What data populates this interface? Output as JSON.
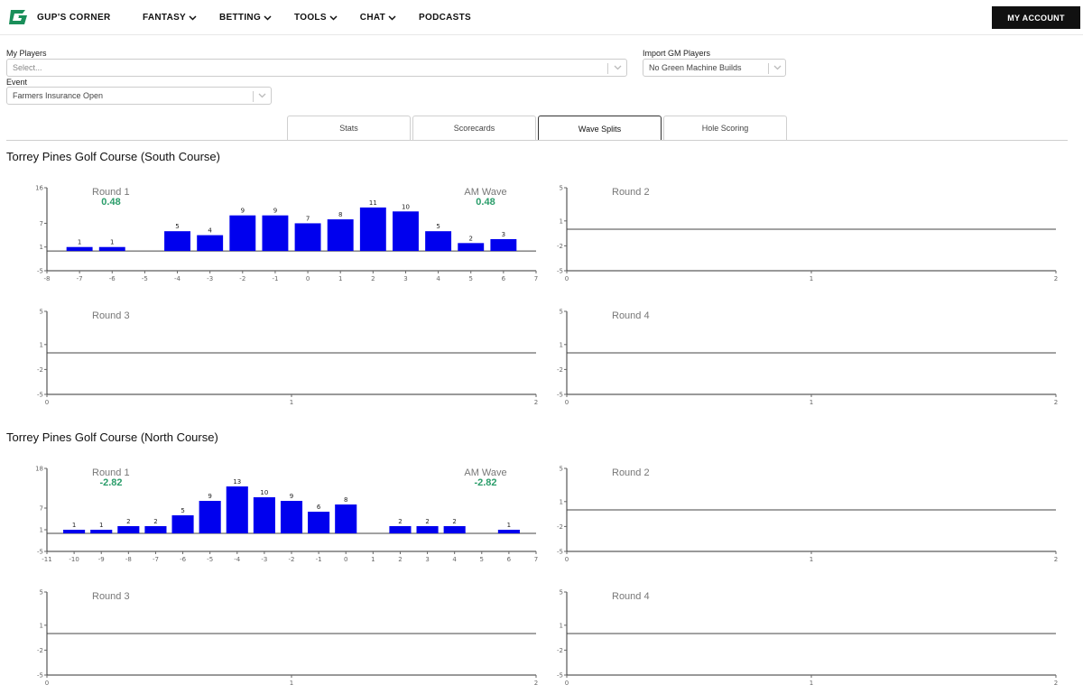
{
  "nav": {
    "brand": "GUP'S CORNER",
    "menu": [
      {
        "label": "FANTASY",
        "dropdown": true
      },
      {
        "label": "BETTING",
        "dropdown": true
      },
      {
        "label": "TOOLS",
        "dropdown": true
      },
      {
        "label": "CHAT",
        "dropdown": true
      },
      {
        "label": "PODCASTS",
        "dropdown": false
      }
    ],
    "account_label": "MY ACCOUNT"
  },
  "filters": {
    "my_players": {
      "label": "My Players",
      "placeholder": "Select..."
    },
    "import_gm": {
      "label": "Import GM Players",
      "value": "No Green Machine Builds"
    },
    "event": {
      "label": "Event",
      "value": "Farmers Insurance Open"
    }
  },
  "tabs": [
    {
      "label": "Stats",
      "active": false
    },
    {
      "label": "Scorecards",
      "active": false
    },
    {
      "label": "Wave Splits",
      "active": true
    },
    {
      "label": "Hole Scoring",
      "active": false
    }
  ],
  "colors": {
    "bar": "#0000ee",
    "accent": "#2a9d6a",
    "brand": "#1a8f5a"
  },
  "sections": [
    {
      "title": "Torrey Pines Golf Course (South Course)",
      "charts": [
        {
          "type": "bar",
          "round": "Round 1",
          "round_value": "0.48",
          "wave": "AM Wave",
          "wave_value": "0.48",
          "xlim": [
            -8,
            7
          ],
          "x_ticks": [
            "-8",
            "-7",
            "-6",
            "-5",
            "-4",
            "-3",
            "-2",
            "-1",
            "0",
            "1",
            "2",
            "3",
            "4",
            "5",
            "6",
            "7"
          ],
          "ylim": [
            -5,
            16
          ],
          "y_ticks": [
            "16",
            "7",
            "1",
            "-5"
          ],
          "bars": [
            {
              "x": -7,
              "value": 1
            },
            {
              "x": -6,
              "value": 1
            },
            {
              "x": -4,
              "value": 5
            },
            {
              "x": -3,
              "value": 4
            },
            {
              "x": -2,
              "value": 9
            },
            {
              "x": -1,
              "value": 9
            },
            {
              "x": 0,
              "value": 7
            },
            {
              "x": 1,
              "value": 8
            },
            {
              "x": 2,
              "value": 11
            },
            {
              "x": 3,
              "value": 10
            },
            {
              "x": 4,
              "value": 5
            },
            {
              "x": 5,
              "value": 2
            },
            {
              "x": 6,
              "value": 3
            }
          ]
        },
        {
          "type": "empty",
          "round": "Round 2",
          "xlim": [
            0,
            2
          ],
          "x_ticks": [
            "0",
            "1",
            "2"
          ],
          "ylim": [
            -5,
            5
          ],
          "y_ticks": [
            "5",
            "1",
            "-2",
            "-5"
          ]
        },
        {
          "type": "empty",
          "round": "Round 3",
          "xlim": [
            0,
            2
          ],
          "x_ticks": [
            "0",
            "1",
            "2"
          ],
          "ylim": [
            -5,
            5
          ],
          "y_ticks": [
            "5",
            "1",
            "-2",
            "-5"
          ]
        },
        {
          "type": "empty",
          "round": "Round 4",
          "xlim": [
            0,
            2
          ],
          "x_ticks": [
            "0",
            "1",
            "2"
          ],
          "ylim": [
            -5,
            5
          ],
          "y_ticks": [
            "5",
            "1",
            "-2",
            "-5"
          ]
        }
      ]
    },
    {
      "title": "Torrey Pines Golf Course (North Course)",
      "charts": [
        {
          "type": "bar",
          "round": "Round 1",
          "round_value": "-2.82",
          "wave": "AM Wave",
          "wave_value": "-2.82",
          "xlim": [
            -11,
            7
          ],
          "x_ticks": [
            "-11",
            "-10",
            "-9",
            "-8",
            "-7",
            "-6",
            "-5",
            "-4",
            "-3",
            "-2",
            "-1",
            "0",
            "1",
            "2",
            "3",
            "4",
            "5",
            "6",
            "7"
          ],
          "ylim": [
            -5,
            18
          ],
          "y_ticks": [
            "18",
            "7",
            "1",
            "-5"
          ],
          "bars": [
            {
              "x": -10,
              "value": 1
            },
            {
              "x": -9,
              "value": 1
            },
            {
              "x": -8,
              "value": 2
            },
            {
              "x": -7,
              "value": 2
            },
            {
              "x": -6,
              "value": 5
            },
            {
              "x": -5,
              "value": 9
            },
            {
              "x": -4,
              "value": 13
            },
            {
              "x": -3,
              "value": 10
            },
            {
              "x": -2,
              "value": 9
            },
            {
              "x": -1,
              "value": 6
            },
            {
              "x": 0,
              "value": 8
            },
            {
              "x": 2,
              "value": 2
            },
            {
              "x": 3,
              "value": 2
            },
            {
              "x": 4,
              "value": 2
            },
            {
              "x": 6,
              "value": 1
            }
          ]
        },
        {
          "type": "empty",
          "round": "Round 2",
          "xlim": [
            0,
            2
          ],
          "x_ticks": [
            "0",
            "1",
            "2"
          ],
          "ylim": [
            -5,
            5
          ],
          "y_ticks": [
            "5",
            "1",
            "-2",
            "-5"
          ]
        },
        {
          "type": "empty",
          "round": "Round 3",
          "xlim": [
            0,
            2
          ],
          "x_ticks": [
            "0",
            "1",
            "2"
          ],
          "ylim": [
            -5,
            5
          ],
          "y_ticks": [
            "5",
            "1",
            "-2",
            "-5"
          ]
        },
        {
          "type": "empty",
          "round": "Round 4",
          "xlim": [
            0,
            2
          ],
          "x_ticks": [
            "0",
            "1",
            "2"
          ],
          "ylim": [
            -5,
            5
          ],
          "y_ticks": [
            "5",
            "1",
            "-2",
            "-5"
          ]
        }
      ]
    }
  ],
  "chart_data": [
    {
      "type": "bar",
      "title": "",
      "course": "Torrey Pines Golf Course (South Course)",
      "round": "Round 1",
      "x": [
        -7,
        -6,
        -4,
        -3,
        -2,
        -1,
        0,
        1,
        2,
        3,
        4,
        5,
        6
      ],
      "values": [
        1,
        1,
        5,
        4,
        9,
        9,
        7,
        8,
        11,
        10,
        5,
        2,
        3
      ],
      "xlim": [
        -8,
        7
      ],
      "ylim": [
        -5,
        16
      ]
    },
    {
      "type": "bar",
      "title": "",
      "course": "Torrey Pines Golf Course (North Course)",
      "round": "Round 1",
      "x": [
        -10,
        -9,
        -8,
        -7,
        -6,
        -5,
        -4,
        -3,
        -2,
        -1,
        0,
        2,
        3,
        4,
        6
      ],
      "values": [
        1,
        1,
        2,
        2,
        5,
        9,
        13,
        10,
        9,
        6,
        8,
        2,
        2,
        2,
        1
      ],
      "xlim": [
        -11,
        7
      ],
      "ylim": [
        -5,
        18
      ]
    }
  ]
}
